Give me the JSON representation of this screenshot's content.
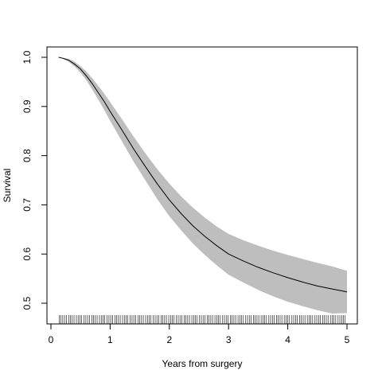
{
  "chart_data": {
    "type": "line",
    "title": "",
    "xlabel": "Years from surgery",
    "ylabel": "Survival",
    "xlim": [
      0,
      5
    ],
    "ylim": [
      0.46,
      1.02
    ],
    "xticks": [
      0,
      1,
      2,
      3,
      4,
      5
    ],
    "yticks": [
      0.5,
      0.6,
      0.7,
      0.8,
      0.9,
      1.0
    ],
    "ytick_labels": [
      "0.5",
      "0.6",
      "0.7",
      "0.8",
      "0.9",
      "1.0"
    ],
    "grid": false,
    "legend": "none",
    "band_color": "#bebebe",
    "line_color": "#000000",
    "series": [
      {
        "x": [
          0.13,
          0.2,
          0.3,
          0.4,
          0.5,
          0.6,
          0.7,
          0.8,
          0.9,
          1.0,
          1.2,
          1.4,
          1.6,
          1.8,
          2.0,
          2.2,
          2.4,
          2.6,
          2.8,
          3.0,
          3.25,
          3.5,
          3.75,
          4.0,
          4.25,
          4.5,
          4.75,
          5.0
        ],
        "y": [
          1.0,
          0.998,
          0.994,
          0.986,
          0.976,
          0.962,
          0.946,
          0.928,
          0.91,
          0.89,
          0.852,
          0.813,
          0.777,
          0.742,
          0.71,
          0.682,
          0.657,
          0.636,
          0.617,
          0.6,
          0.586,
          0.573,
          0.562,
          0.552,
          0.543,
          0.535,
          0.529,
          0.523
        ],
        "lower": [
          1.0,
          0.997,
          0.991,
          0.981,
          0.969,
          0.953,
          0.934,
          0.914,
          0.893,
          0.871,
          0.829,
          0.787,
          0.749,
          0.711,
          0.677,
          0.648,
          0.621,
          0.598,
          0.577,
          0.558,
          0.542,
          0.527,
          0.514,
          0.503,
          0.494,
          0.486,
          0.479,
          0.48
        ],
        "upper": [
          1.0,
          0.999,
          0.997,
          0.991,
          0.982,
          0.971,
          0.957,
          0.942,
          0.926,
          0.909,
          0.874,
          0.838,
          0.804,
          0.772,
          0.743,
          0.717,
          0.694,
          0.674,
          0.656,
          0.641,
          0.628,
          0.617,
          0.607,
          0.598,
          0.59,
          0.582,
          0.575,
          0.566
        ]
      }
    ],
    "rug_x": [
      0.14,
      0.17,
      0.2,
      0.23,
      0.26,
      0.3,
      0.33,
      0.36,
      0.39,
      0.43,
      0.46,
      0.49,
      0.52,
      0.56,
      0.59,
      0.62,
      0.65,
      0.69,
      0.72,
      0.75,
      0.78,
      0.82,
      0.85,
      0.88,
      0.91,
      0.95,
      0.98,
      1.01,
      1.04,
      1.08,
      1.11,
      1.14,
      1.17,
      1.21,
      1.24,
      1.27,
      1.3,
      1.34,
      1.37,
      1.4,
      1.43,
      1.47,
      1.5,
      1.53,
      1.56,
      1.6,
      1.63,
      1.66,
      1.69,
      1.73,
      1.76,
      1.79,
      1.82,
      1.86,
      1.89,
      1.92,
      1.95,
      1.99,
      2.02,
      2.05,
      2.08,
      2.12,
      2.15,
      2.18,
      2.21,
      2.25,
      2.28,
      2.31,
      2.34,
      2.38,
      2.41,
      2.44,
      2.47,
      2.51,
      2.54,
      2.57,
      2.6,
      2.64,
      2.67,
      2.7,
      2.73,
      2.77,
      2.8,
      2.83,
      2.86,
      2.9,
      2.93,
      2.96,
      2.99,
      3.03,
      3.06,
      3.09,
      3.12,
      3.16,
      3.19,
      3.22,
      3.25,
      3.29,
      3.32,
      3.35,
      3.38,
      3.42,
      3.45,
      3.48,
      3.51,
      3.55,
      3.58,
      3.61,
      3.64,
      3.68,
      3.71,
      3.74,
      3.77,
      3.81,
      3.84,
      3.87,
      3.9,
      3.94,
      3.97,
      4.0,
      4.03,
      4.07,
      4.1,
      4.13,
      4.16,
      4.2,
      4.23,
      4.26,
      4.29,
      4.33,
      4.36,
      4.39,
      4.42,
      4.46,
      4.49,
      4.52,
      4.55,
      4.59,
      4.62,
      4.65,
      4.68,
      4.72,
      4.75,
      4.78,
      4.81,
      4.85,
      4.88,
      4.91,
      4.94,
      4.97
    ]
  }
}
